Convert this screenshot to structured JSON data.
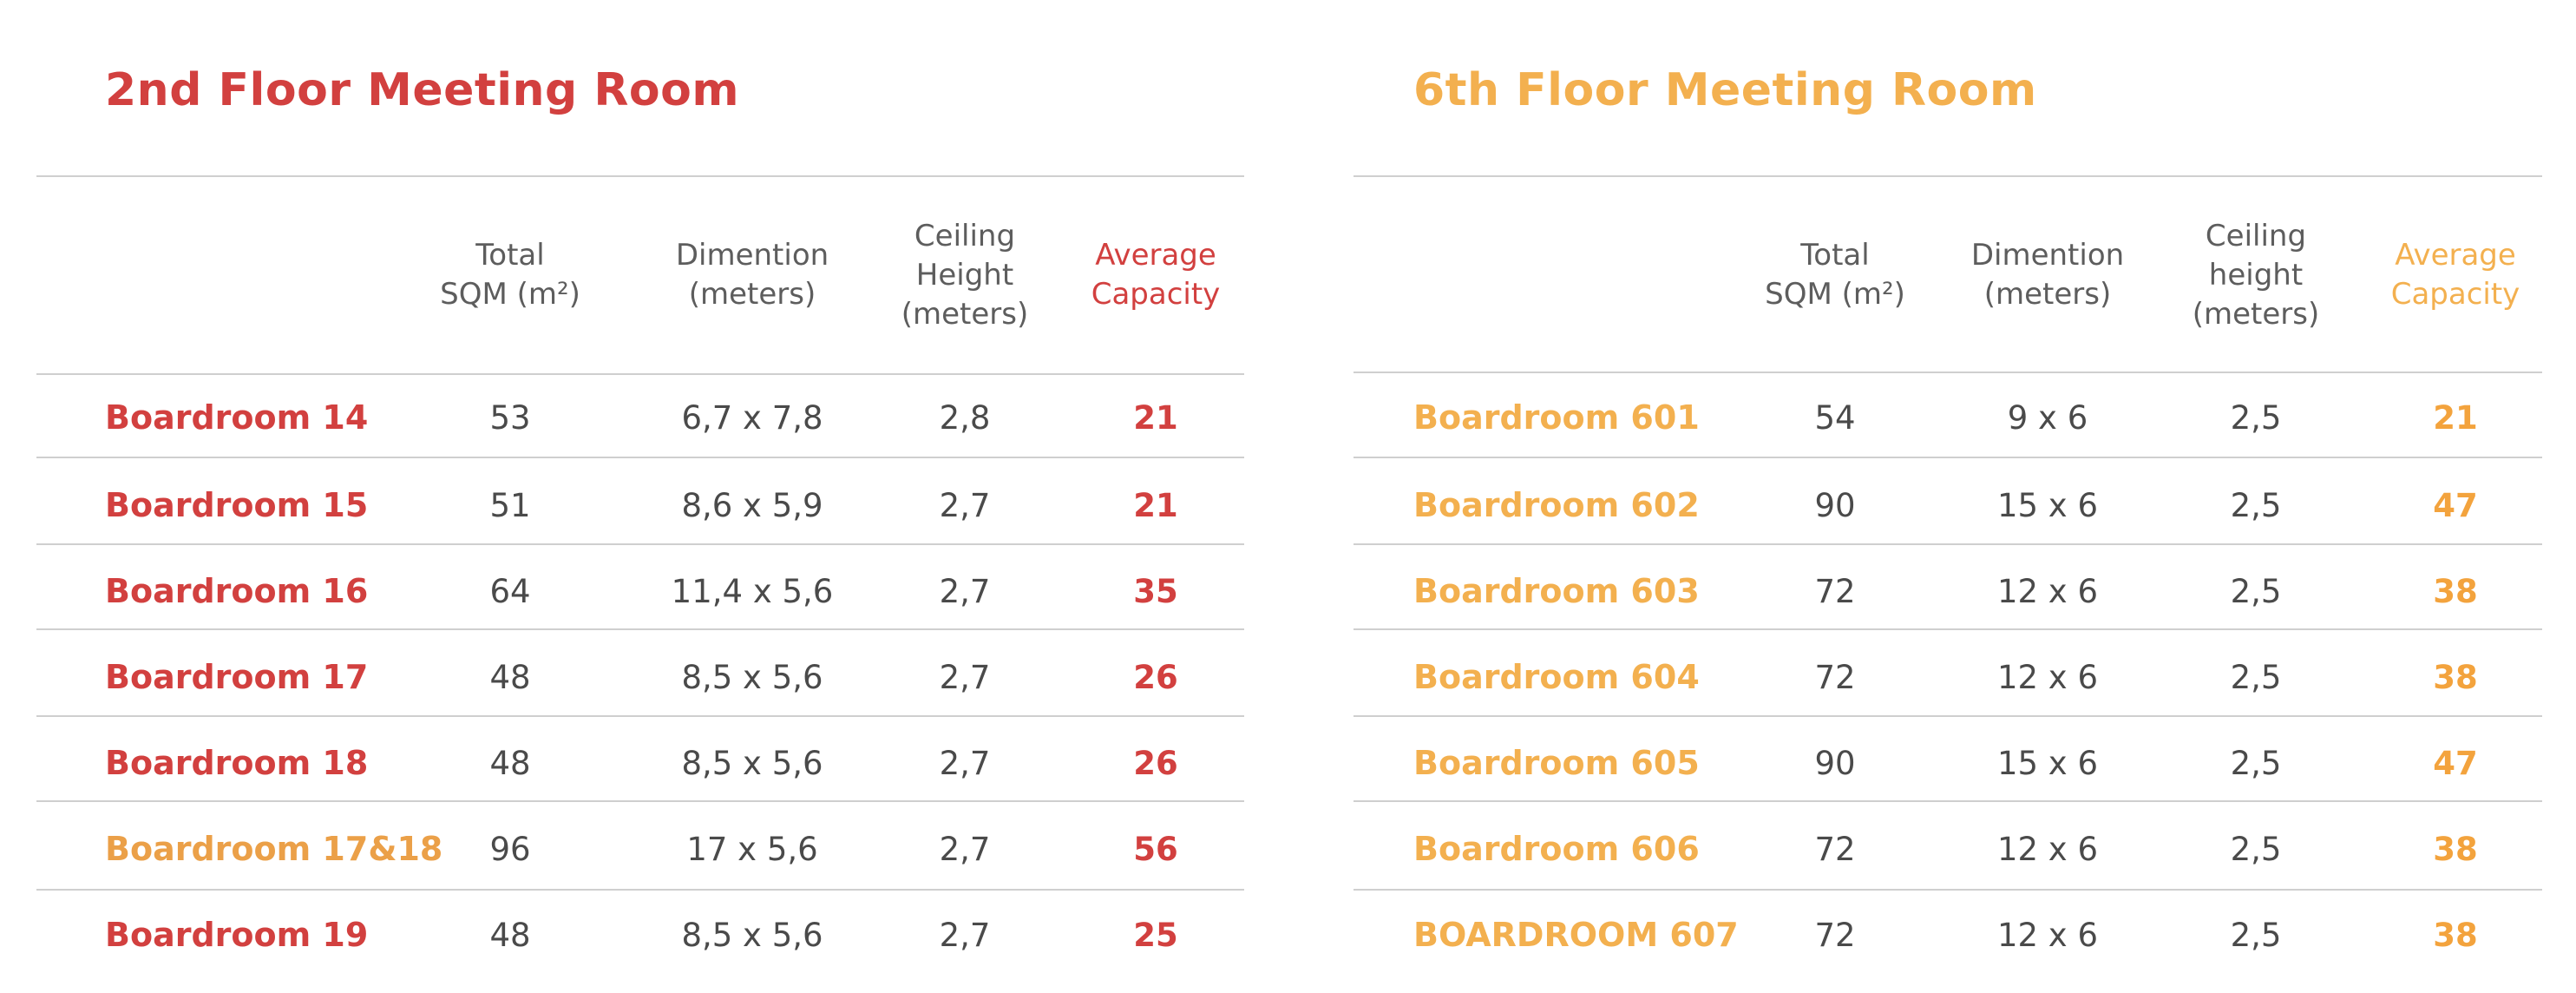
{
  "colors": {
    "second_floor_accent": "#d2403f",
    "second_floor_alt": "#eba048",
    "sixth_floor_accent": "#f3b04f",
    "text": "#4a4a4a",
    "rule": "#cfcfcf"
  },
  "left": {
    "title": "2nd Floor Meeting Room",
    "headers": [
      "Total\nSQM (m²)",
      "Dimention\n(meters)",
      "Ceiling\nHeight\n(meters)",
      "Average\nCapacity"
    ],
    "rows": [
      {
        "name": "Boardroom 14",
        "sqm": "53",
        "dimension": "6,7 x 7,8",
        "height": "2,8",
        "capacity": "21"
      },
      {
        "name": "Boardroom 15",
        "sqm": "51",
        "dimension": "8,6 x 5,9",
        "height": "2,7",
        "capacity": "21"
      },
      {
        "name": "Boardroom 16",
        "sqm": "64",
        "dimension": "11,4 x 5,6",
        "height": "2,7",
        "capacity": "35"
      },
      {
        "name": "Boardroom 17",
        "sqm": "48",
        "dimension": "8,5 x 5,6",
        "height": "2,7",
        "capacity": "26"
      },
      {
        "name": "Boardroom 18",
        "sqm": "48",
        "dimension": "8,5 x 5,6",
        "height": "2,7",
        "capacity": "26"
      },
      {
        "name": "Boardroom 17&18",
        "sqm": "96",
        "dimension": "17 x 5,6",
        "height": "2,7",
        "capacity": "56"
      },
      {
        "name": "Boardroom 19",
        "sqm": "48",
        "dimension": "8,5 x 5,6",
        "height": "2,7",
        "capacity": "25"
      }
    ]
  },
  "right": {
    "title": "6th Floor Meeting Room",
    "headers": [
      "Total\nSQM (m²)",
      "Dimention\n(meters)",
      "Ceiling\nheight\n(meters)",
      "Average\nCapacity"
    ],
    "rows": [
      {
        "name": "Boardroom 601",
        "sqm": "54",
        "dimension": "9 x 6",
        "height": "2,5",
        "capacity": "21"
      },
      {
        "name": "Boardroom 602",
        "sqm": "90",
        "dimension": "15 x 6",
        "height": "2,5",
        "capacity": "47"
      },
      {
        "name": "Boardroom 603",
        "sqm": "72",
        "dimension": "12 x 6",
        "height": "2,5",
        "capacity": "38"
      },
      {
        "name": "Boardroom 604",
        "sqm": "72",
        "dimension": "12 x 6",
        "height": "2,5",
        "capacity": "38"
      },
      {
        "name": "Boardroom 605",
        "sqm": "90",
        "dimension": "15 x 6",
        "height": "2,5",
        "capacity": "47"
      },
      {
        "name": "Boardroom 606",
        "sqm": "72",
        "dimension": "12 x 6",
        "height": "2,5",
        "capacity": "38"
      },
      {
        "name": "BOARDROOM 607",
        "sqm": "72",
        "dimension": "12 x 6",
        "height": "2,5",
        "capacity": "38"
      }
    ]
  }
}
